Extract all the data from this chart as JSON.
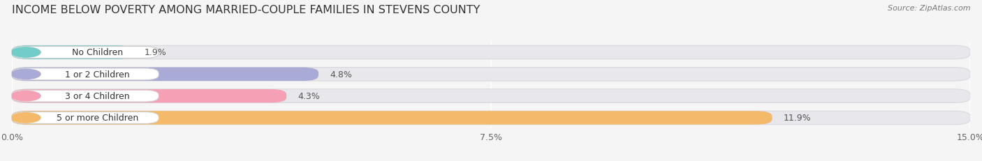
{
  "title": "INCOME BELOW POVERTY AMONG MARRIED-COUPLE FAMILIES IN STEVENS COUNTY",
  "source": "Source: ZipAtlas.com",
  "categories": [
    "No Children",
    "1 or 2 Children",
    "3 or 4 Children",
    "5 or more Children"
  ],
  "values": [
    1.9,
    4.8,
    4.3,
    11.9
  ],
  "bar_colors": [
    "#72cdc9",
    "#a9aad6",
    "#f5a0b4",
    "#f5b96a"
  ],
  "bar_bg_color": "#e8e8ec",
  "label_left_colors": [
    "#72cdc9",
    "#a9aad6",
    "#f5a0b4",
    "#f5b96a"
  ],
  "xlim": [
    0,
    15.0
  ],
  "xticks": [
    0.0,
    7.5,
    15.0
  ],
  "xtick_labels": [
    "0.0%",
    "7.5%",
    "15.0%"
  ],
  "background_color": "#f5f5f5",
  "title_fontsize": 11.5,
  "tick_fontsize": 9,
  "label_fontsize": 9,
  "value_fontsize": 9
}
